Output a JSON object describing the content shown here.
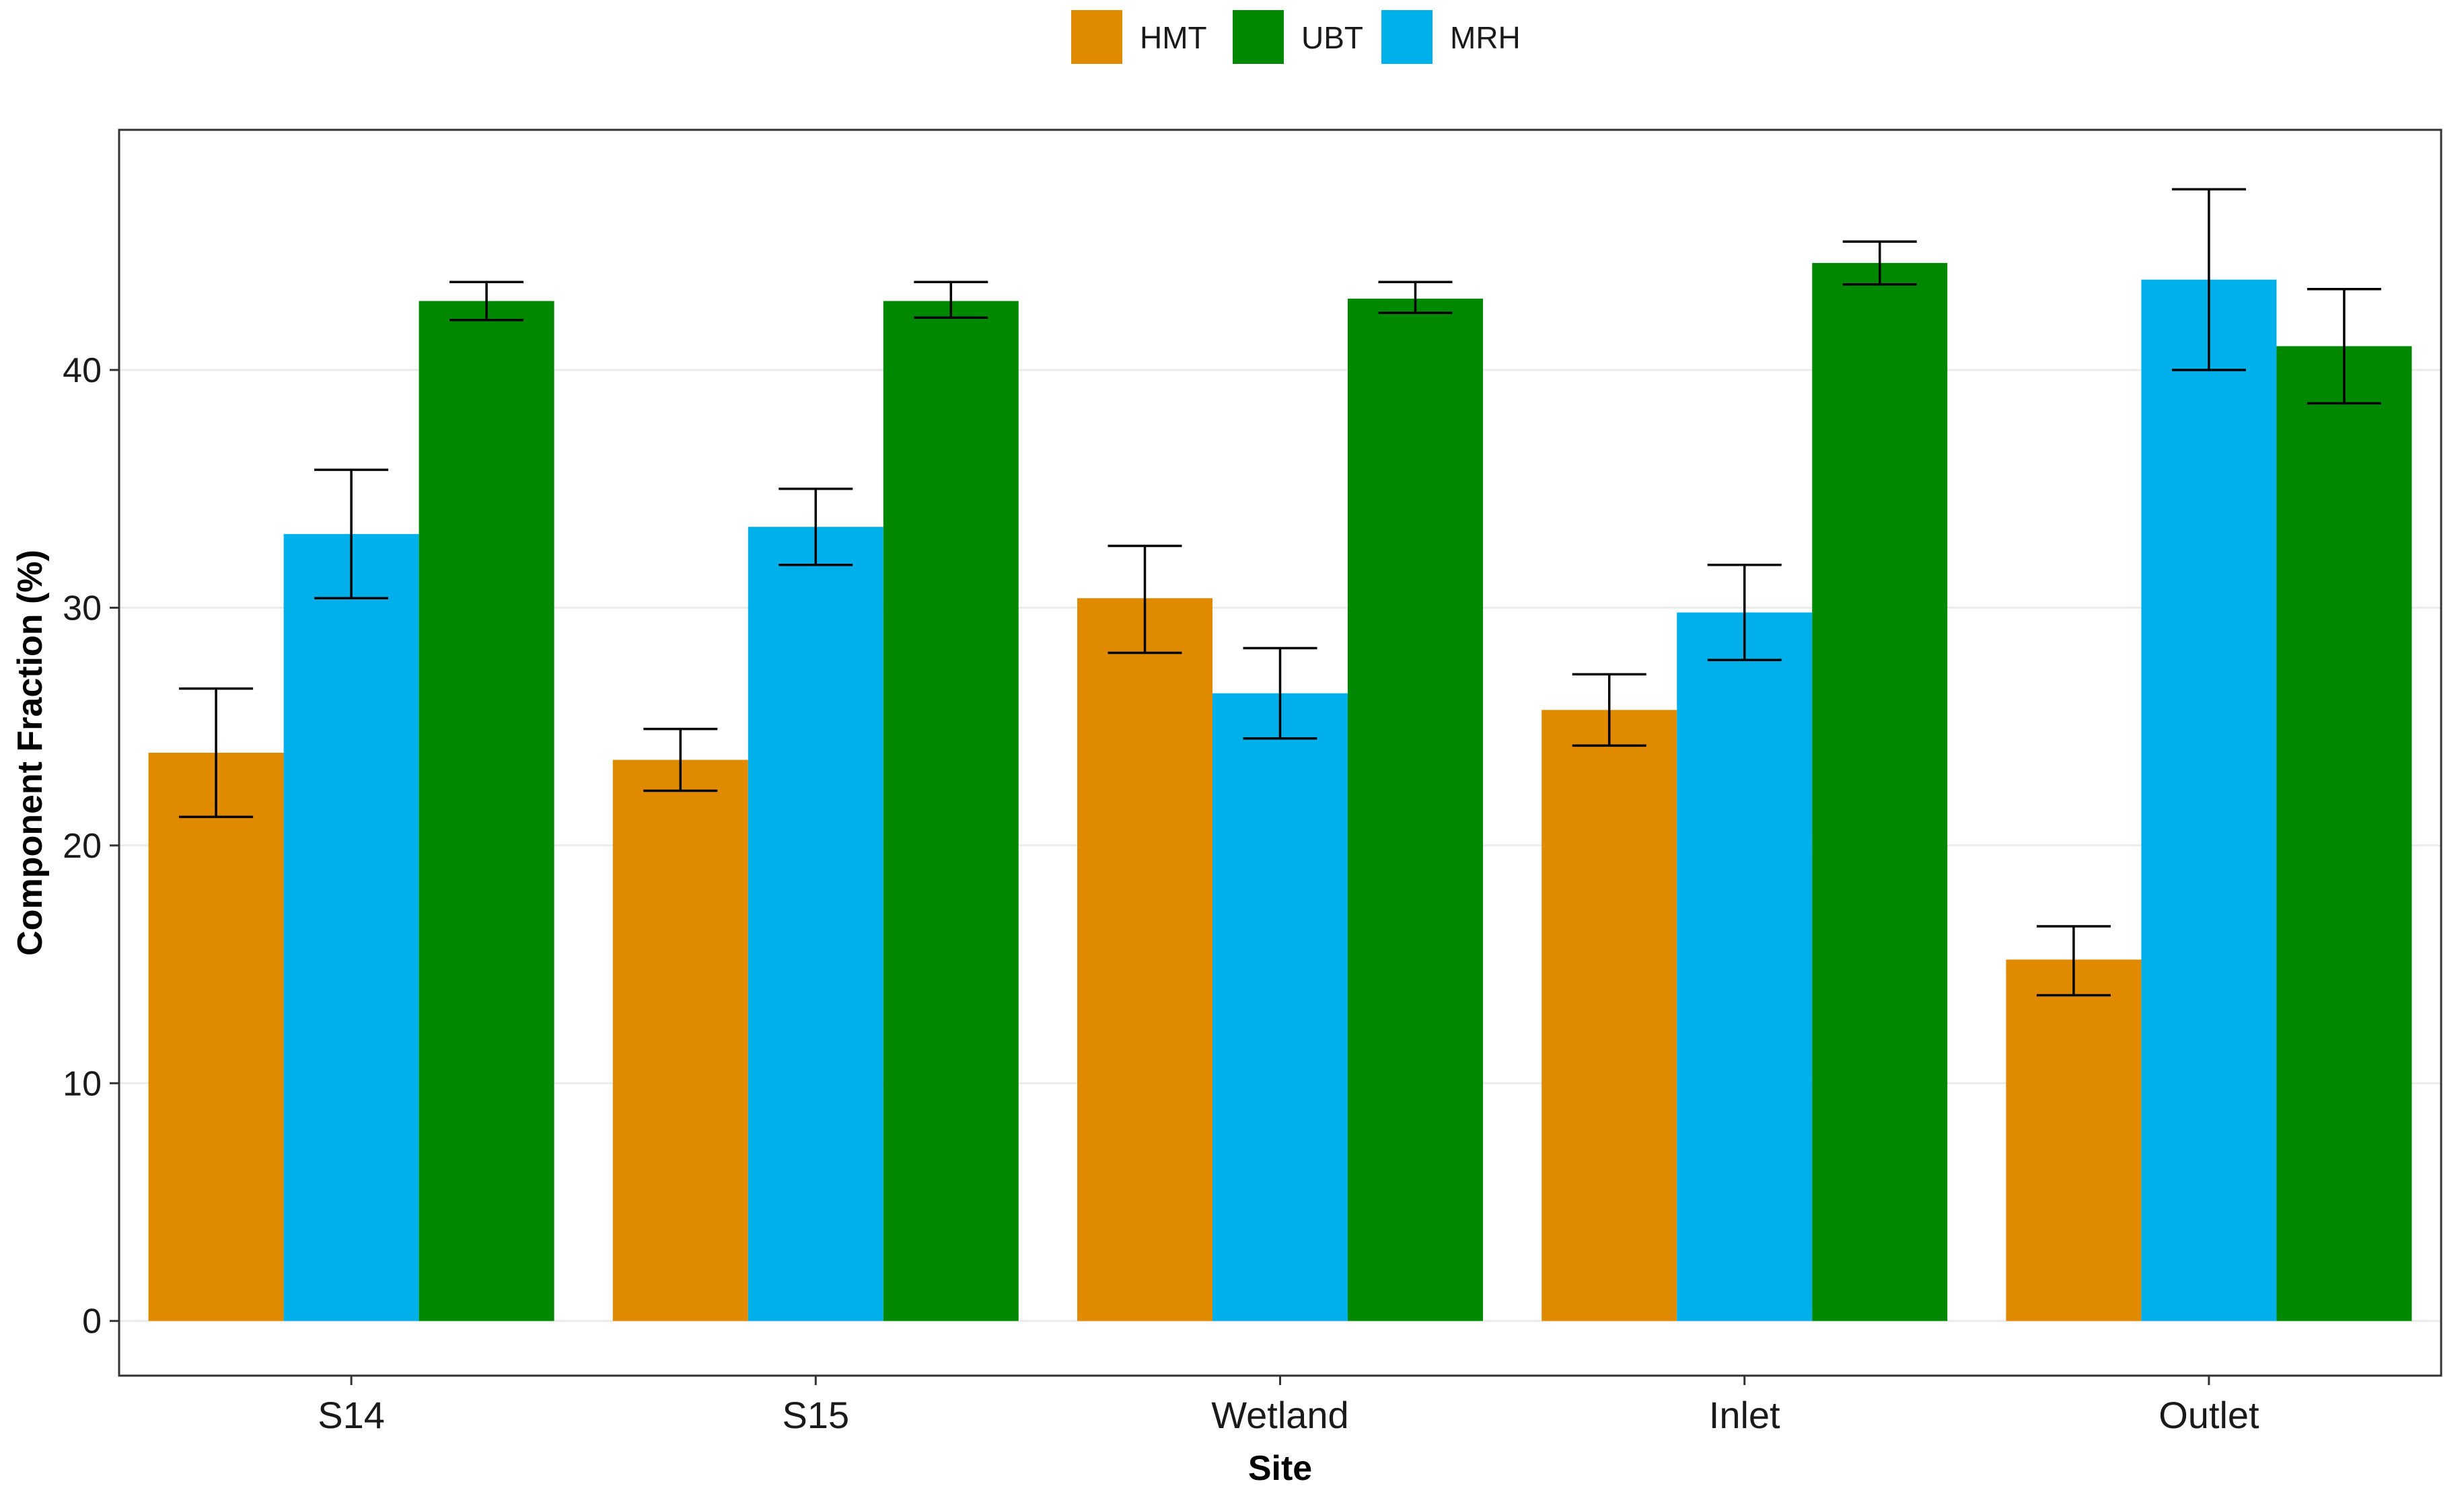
{
  "chart_data": {
    "type": "bar",
    "title": "",
    "xlabel": "Site",
    "ylabel": "Component Fraction (%)",
    "ylim": [
      -2.3,
      50.1
    ],
    "yticks": [
      0,
      10,
      20,
      30,
      40
    ],
    "grid": true,
    "legend_position": "top",
    "categories": [
      "S14",
      "S15",
      "Wetland",
      "Inlet",
      "Outlet"
    ],
    "series_order_by_category": [
      [
        "HMT",
        "MRH",
        "UBT"
      ],
      [
        "HMT",
        "MRH",
        "UBT"
      ],
      [
        "HMT",
        "MRH",
        "UBT"
      ],
      [
        "HMT",
        "MRH",
        "UBT"
      ],
      [
        "HMT",
        "MRH",
        "UBT"
      ]
    ],
    "legend_order": [
      "HMT",
      "UBT",
      "MRH"
    ],
    "series": [
      {
        "name": "HMT",
        "color": "#E08A00",
        "values": [
          23.9,
          23.6,
          30.4,
          25.7,
          15.2
        ],
        "err_low": [
          21.2,
          22.3,
          28.1,
          24.2,
          13.7
        ],
        "err_high": [
          26.6,
          24.9,
          32.6,
          27.2,
          16.6
        ]
      },
      {
        "name": "UBT",
        "color": "#008800",
        "values": [
          42.9,
          42.9,
          43.0,
          44.5,
          41.0
        ],
        "err_low": [
          42.1,
          42.2,
          42.4,
          43.6,
          38.6
        ],
        "err_high": [
          43.7,
          43.7,
          43.7,
          45.4,
          43.4
        ]
      },
      {
        "name": "MRH",
        "color": "#00B0EB",
        "values": [
          33.1,
          33.4,
          26.4,
          29.8,
          43.8
        ],
        "err_low": [
          30.4,
          31.8,
          24.5,
          27.8,
          40.0
        ],
        "err_high": [
          35.8,
          35.0,
          28.3,
          31.8,
          47.6
        ]
      }
    ]
  }
}
